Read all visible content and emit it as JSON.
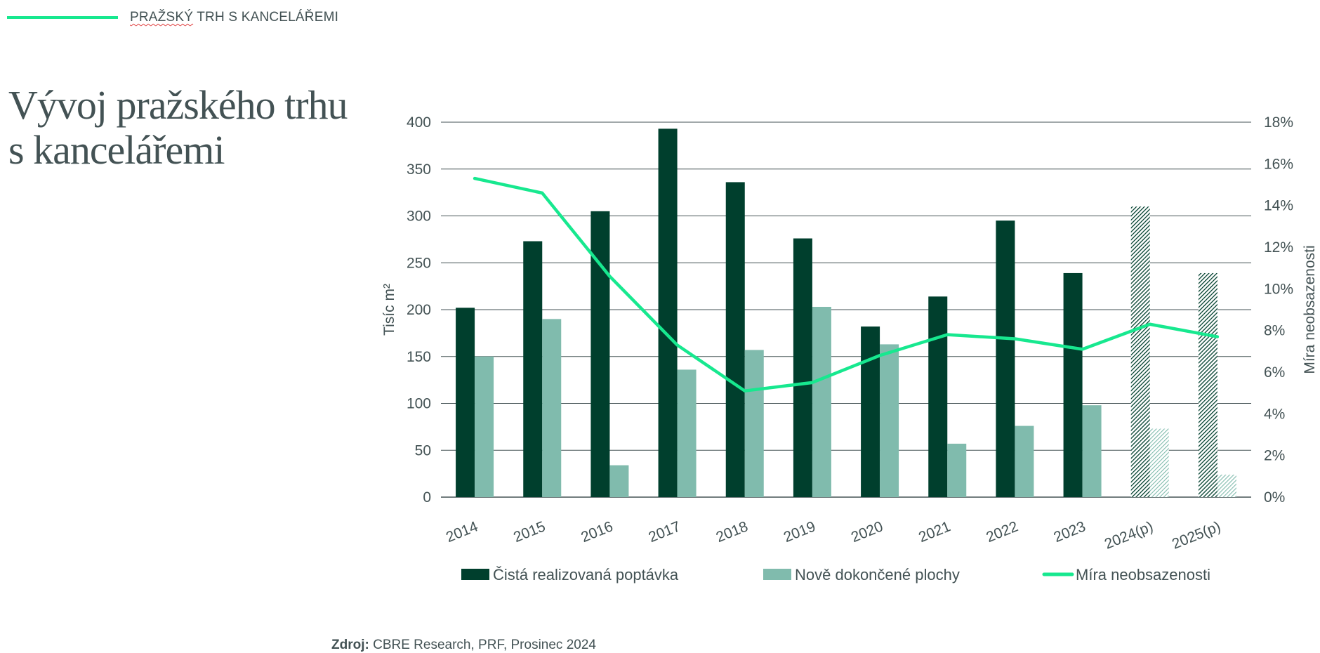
{
  "header": {
    "word1": "PRAŽSKÝ",
    "rest": " TRH S KANCELÁŘEMI"
  },
  "title": {
    "line1": "Vývoj pražského trhu",
    "line2": "s kancelářemi"
  },
  "source": {
    "label": "Zdroj:",
    "text": " CBRE Research, PRF, Prosinec 2024"
  },
  "colors": {
    "dark_bar": "#003f2d",
    "light_bar": "#80bbad",
    "line": "#17e88f",
    "grid": "#435254",
    "text": "#435254"
  },
  "chart_data": {
    "type": "bar",
    "categories": [
      "2014",
      "2015",
      "2016",
      "2017",
      "2018",
      "2019",
      "2020",
      "2021",
      "2022",
      "2023",
      "2024(p)",
      "2025(p)"
    ],
    "forecast_categories": [
      "2024(p)",
      "2025(p)"
    ],
    "series": [
      {
        "name": "Čistá realizovaná poptávka",
        "type": "bar",
        "axis": "left",
        "values": [
          202,
          273,
          305,
          393,
          336,
          276,
          182,
          214,
          295,
          239,
          310,
          239
        ]
      },
      {
        "name": "Nově dokončené plochy",
        "type": "bar",
        "axis": "left",
        "values": [
          150,
          190,
          34,
          136,
          157,
          203,
          163,
          57,
          76,
          98,
          73,
          24
        ]
      },
      {
        "name": "Míra neobsazenosti",
        "type": "line",
        "axis": "right",
        "values": [
          15.3,
          14.6,
          10.6,
          7.3,
          5.1,
          5.5,
          6.8,
          7.8,
          7.6,
          7.1,
          8.3,
          7.7
        ]
      }
    ],
    "ylabel": "Tisíc m²",
    "ylabel_right": "Míra neobsazenosti",
    "ylim": [
      0,
      400
    ],
    "yticks": [
      "0",
      "50",
      "100",
      "150",
      "200",
      "250",
      "300",
      "350",
      "400"
    ],
    "ylim_right": [
      0,
      18
    ],
    "yticks_right": [
      "0%",
      "2%",
      "4%",
      "6%",
      "8%",
      "10%",
      "12%",
      "14%",
      "16%",
      "18%"
    ],
    "grid": true,
    "legend_position": "bottom"
  }
}
